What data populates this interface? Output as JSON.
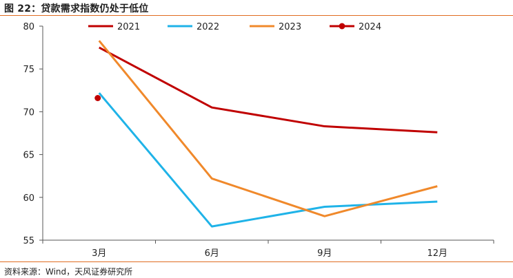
{
  "header": {
    "title": "图 22：贷款需求指数仍处于低位"
  },
  "footer": {
    "source": "资料来源：Wind，天风证券研究所"
  },
  "chart_data": {
    "type": "line",
    "categories": [
      "3月",
      "6月",
      "9月",
      "12月"
    ],
    "ylim": [
      55,
      80
    ],
    "yticks": [
      55,
      60,
      65,
      70,
      75,
      80
    ],
    "grid": false,
    "legend_position": "top",
    "series": [
      {
        "name": "2021",
        "color": "#c00000",
        "values": [
          77.5,
          70.5,
          68.3,
          67.6
        ],
        "marker": false
      },
      {
        "name": "2022",
        "color": "#1fb3e8",
        "values": [
          72.2,
          56.6,
          58.9,
          59.5
        ],
        "marker": false
      },
      {
        "name": "2023",
        "color": "#f0892b",
        "values": [
          78.3,
          62.2,
          57.8,
          61.3
        ],
        "marker": false
      },
      {
        "name": "2024",
        "color": "#c00000",
        "values": [
          71.6,
          null,
          null,
          null
        ],
        "marker": true
      }
    ]
  }
}
